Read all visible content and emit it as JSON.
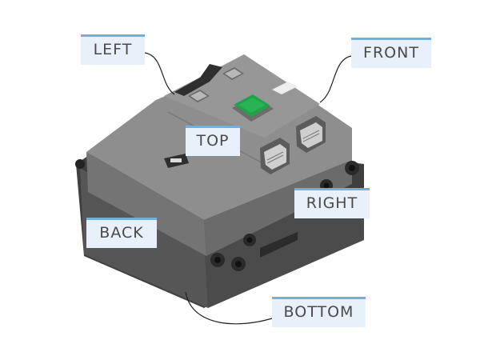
{
  "labels": {
    "left": "LEFT",
    "front": "FRONT",
    "top": "TOP",
    "right": "RIGHT",
    "back": "BACK",
    "bottom": "BOTTOM"
  },
  "colors": {
    "label_bg": "#e8f1f9",
    "label_border": "#6fb0dd",
    "label_text": "#4a4a4a",
    "hub_top": "#8e8e8e",
    "hub_side": "#6b6b6b",
    "hub_dark": "#3f3f3f",
    "button_green": "#1fa24a",
    "leader_line": "#222222"
  },
  "icons": {
    "center_button": "green-square-button",
    "ports": "connector-port-icon"
  }
}
